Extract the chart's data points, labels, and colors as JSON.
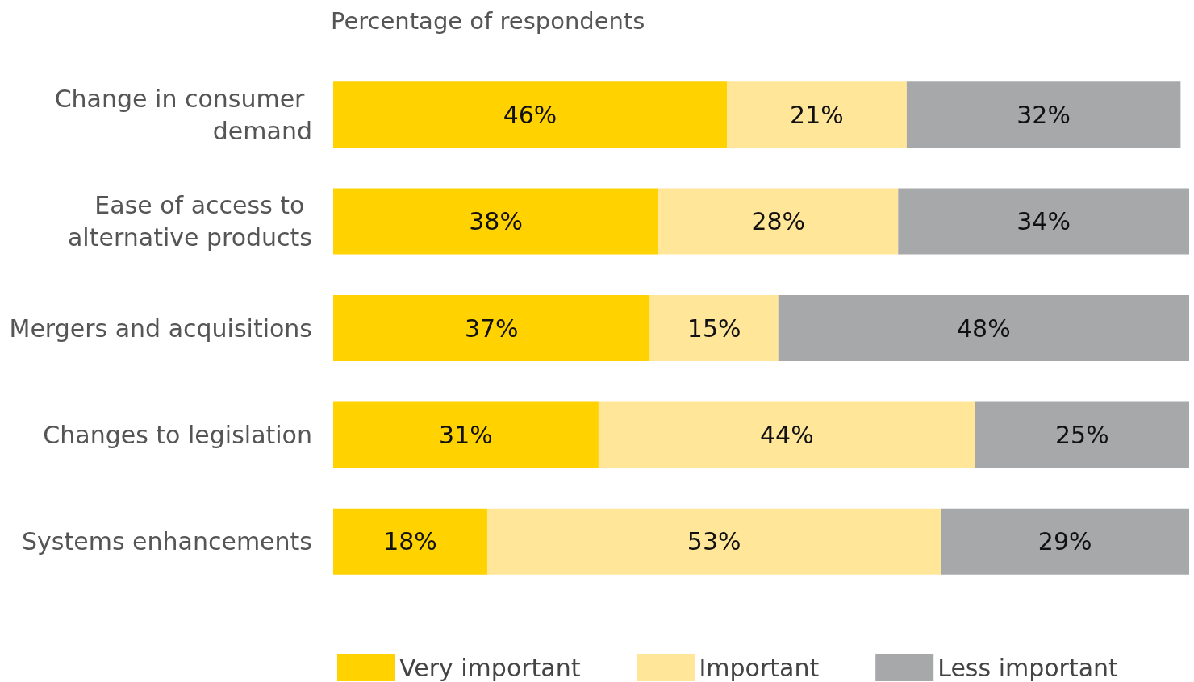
{
  "chart_data": {
    "type": "bar",
    "orientation": "horizontal",
    "stacked": true,
    "title": "Percentage of respondents",
    "categories": [
      "Change in consumer demand",
      "Ease of access to alternative products",
      "Mergers and acquisitions",
      "Changes to legislation",
      "Systems enhancements"
    ],
    "series": [
      {
        "name": "Very important",
        "color": "#ffd200",
        "values": [
          46,
          38,
          37,
          31,
          18
        ],
        "value_labels": [
          "46%",
          "38%",
          "37%",
          "31%",
          "18%"
        ]
      },
      {
        "name": "Important",
        "color": "#ffe699",
        "values": [
          21,
          28,
          15,
          44,
          53
        ],
        "value_labels": [
          "21%",
          "28%",
          "15%",
          "44%",
          "53%"
        ]
      },
      {
        "name": "Less important",
        "color": "#a7a8aa",
        "values": [
          32,
          34,
          48,
          25,
          29
        ],
        "value_labels": [
          "32%",
          "34%",
          "48%",
          "25%",
          "29%"
        ]
      }
    ],
    "legend": "bottom",
    "grid": false
  }
}
